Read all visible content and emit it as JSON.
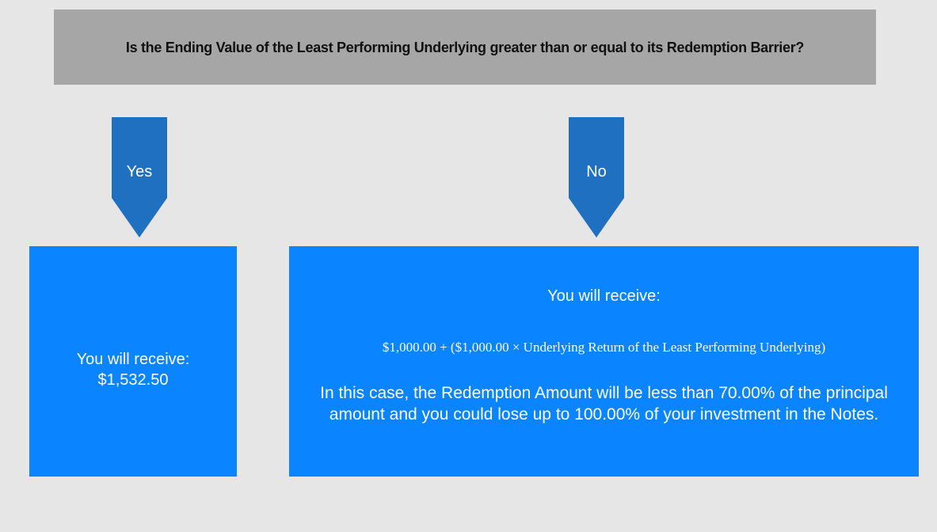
{
  "question": "Is the Ending Value of the Least Performing Underlying greater than or equal to its Redemption Barrier?",
  "branches": [
    {
      "label": "Yes",
      "result": {
        "heading": "You will receive:",
        "amount": "$1,532.50"
      }
    },
    {
      "label": "No",
      "result": {
        "heading": "You will receive:",
        "formula": "$1,000.00 + ($1,000.00 × Underlying Return of the Least Performing Underlying)",
        "note": "In this case, the Redemption Amount will be less than 70.00% of the principal amount and you could lose up to 100.00% of your investment in the Notes."
      }
    }
  ]
}
